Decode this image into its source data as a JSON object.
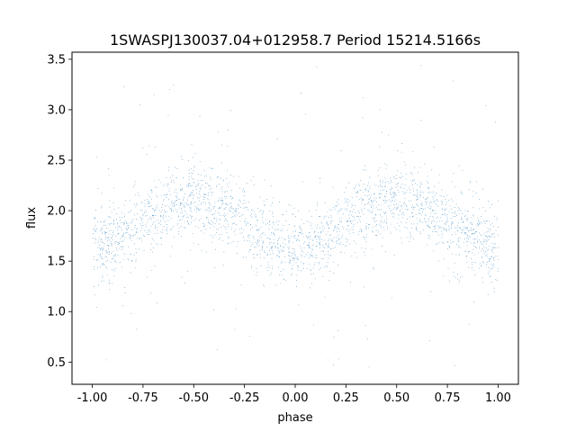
{
  "chart_data": {
    "type": "scatter",
    "title": "1SWASPJ130037.04+012958.7 Period 15214.5166s",
    "xlabel": "phase",
    "ylabel": "flux",
    "xlim": [
      -1.1,
      1.1
    ],
    "ylim": [
      0.28,
      3.57
    ],
    "xticks": [
      "-1.00",
      "-0.75",
      "-0.50",
      "-0.25",
      "0.00",
      "0.25",
      "0.50",
      "0.75",
      "1.00"
    ],
    "yticks": [
      "0.5",
      "1.0",
      "1.5",
      "2.0",
      "2.5",
      "3.0",
      "3.5"
    ],
    "grid": false,
    "legend": "none",
    "marker_color": "#1f77b4",
    "series": [
      {
        "model": "folded light curve, two maxima per cycle",
        "x_range": [
          -1.0,
          1.0
        ],
        "baseline_flux": 1.88,
        "amplitude": 0.23,
        "maxima_phase": [
          -0.5,
          0.5
        ],
        "minima_phase": [
          -1.0,
          0.0,
          1.0
        ],
        "scatter_sigma": 0.17,
        "point_count": 42000,
        "outlier_range": [
          0.4,
          3.45
        ]
      }
    ]
  }
}
